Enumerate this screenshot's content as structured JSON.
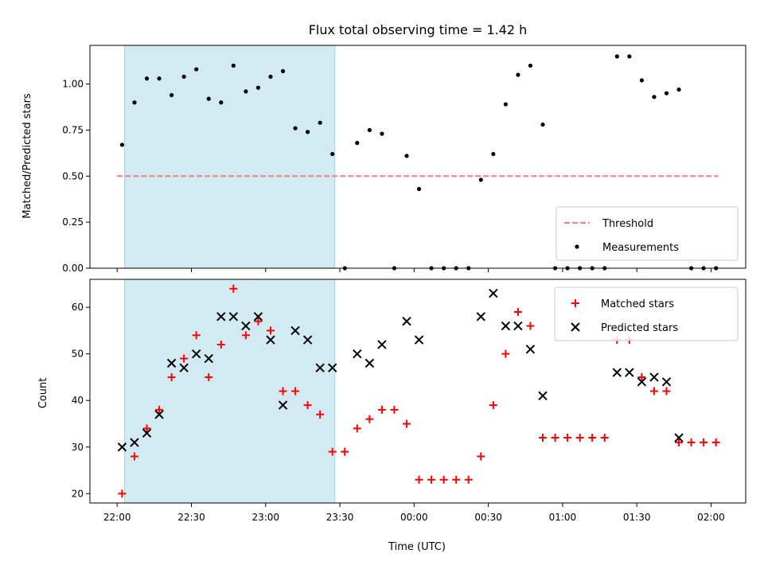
{
  "chart_data": [
    {
      "type": "scatter",
      "title": "Flux total observing time = 1.42 h",
      "xlabel": "",
      "ylabel": "Matched/Predicted stars",
      "ylim": [
        0,
        1.21
      ],
      "xlim": [
        "21:49",
        "02:14"
      ],
      "yticks": [
        "0.00",
        "0.25",
        "0.50",
        "0.75",
        "1.00"
      ],
      "shaded_span": {
        "start": "22:03",
        "end": "23:28",
        "color": "#add8e6"
      },
      "threshold": {
        "name": "Threshold",
        "value": 0.5,
        "start": "22:00",
        "end": "02:03",
        "color": "#f08080"
      },
      "legend": {
        "position": "lower right"
      },
      "series": [
        {
          "name": "Measurements",
          "color": "#000000",
          "x": [
            "22:02",
            "22:07",
            "22:12",
            "22:17",
            "22:22",
            "22:27",
            "22:32",
            "22:37",
            "22:42",
            "22:47",
            "22:52",
            "22:57",
            "23:02",
            "23:07",
            "23:12",
            "23:17",
            "23:22",
            "23:27",
            "23:32",
            "23:37",
            "23:42",
            "23:47",
            "23:52",
            "23:57",
            "00:02",
            "00:07",
            "00:12",
            "00:17",
            "00:22",
            "00:27",
            "00:32",
            "00:37",
            "00:42",
            "00:47",
            "00:52",
            "00:57",
            "01:02",
            "01:07",
            "01:12",
            "01:17",
            "01:22",
            "01:27",
            "01:32",
            "01:37",
            "01:42",
            "01:47",
            "01:52",
            "01:57",
            "02:02"
          ],
          "y": [
            0.67,
            0.9,
            1.03,
            1.03,
            0.94,
            1.04,
            1.08,
            0.92,
            0.9,
            1.1,
            0.96,
            0.98,
            1.04,
            1.07,
            0.76,
            0.74,
            0.79,
            0.62,
            0.0,
            0.68,
            0.75,
            0.73,
            0.0,
            0.61,
            0.43,
            0.0,
            0.0,
            0.0,
            0.0,
            0.48,
            0.62,
            0.89,
            1.05,
            1.1,
            0.78,
            0.0,
            0.0,
            0.0,
            0.0,
            0.0,
            1.15,
            1.15,
            1.02,
            0.93,
            0.95,
            0.97,
            0.0,
            0.0,
            0.0
          ]
        }
      ]
    },
    {
      "type": "scatter",
      "title": "",
      "xlabel": "Time (UTC)",
      "ylabel": "Count",
      "ylim": [
        18,
        66
      ],
      "xlim": [
        "21:49",
        "02:14"
      ],
      "yticks": [
        "20",
        "30",
        "40",
        "50",
        "60"
      ],
      "xticks": [
        "22:00",
        "22:30",
        "23:00",
        "23:30",
        "00:00",
        "00:30",
        "01:00",
        "01:30",
        "02:00"
      ],
      "shaded_span": {
        "start": "22:03",
        "end": "23:28",
        "color": "#add8e6"
      },
      "legend": {
        "position": "upper right"
      },
      "series": [
        {
          "name": "Matched stars",
          "marker": "+",
          "color": "#ff0000",
          "x": [
            "22:02",
            "22:07",
            "22:12",
            "22:17",
            "22:22",
            "22:27",
            "22:32",
            "22:37",
            "22:42",
            "22:47",
            "22:52",
            "22:57",
            "23:02",
            "23:07",
            "23:12",
            "23:17",
            "23:22",
            "23:27",
            "23:32",
            "23:37",
            "23:42",
            "23:47",
            "23:52",
            "23:57",
            "00:02",
            "00:07",
            "00:12",
            "00:17",
            "00:22",
            "00:27",
            "00:32",
            "00:37",
            "00:42",
            "00:47",
            "00:52",
            "00:57",
            "01:02",
            "01:07",
            "01:12",
            "01:17",
            "01:22",
            "01:27",
            "01:32",
            "01:37",
            "01:42",
            "01:47",
            "01:52",
            "01:57",
            "02:02"
          ],
          "y": [
            20,
            28,
            34,
            38,
            45,
            49,
            54,
            45,
            52,
            64,
            54,
            57,
            55,
            42,
            42,
            39,
            37,
            29,
            29,
            34,
            36,
            38,
            38,
            35,
            23,
            23,
            23,
            23,
            23,
            28,
            39,
            50,
            59,
            56,
            32,
            32,
            32,
            32,
            32,
            32,
            53,
            53,
            45,
            42,
            42,
            31,
            31,
            31,
            31
          ]
        },
        {
          "name": "Predicted stars",
          "marker": "x",
          "color": "#000000",
          "x": [
            "22:02",
            "22:07",
            "22:12",
            "22:17",
            "22:22",
            "22:27",
            "22:32",
            "22:37",
            "22:42",
            "22:47",
            "22:52",
            "22:57",
            "23:02",
            "23:07",
            "23:12",
            "23:17",
            "23:22",
            "23:27",
            "23:37",
            "23:42",
            "23:47",
            "23:57",
            "00:02",
            "00:27",
            "00:32",
            "00:37",
            "00:42",
            "00:47",
            "00:52",
            "01:22",
            "01:27",
            "01:32",
            "01:37",
            "01:42",
            "01:47"
          ],
          "y": [
            30,
            31,
            33,
            37,
            48,
            47,
            50,
            49,
            58,
            58,
            56,
            58,
            53,
            39,
            55,
            53,
            47,
            47,
            50,
            48,
            52,
            57,
            53,
            58,
            63,
            56,
            56,
            51,
            41,
            46,
            46,
            44,
            45,
            44,
            32
          ]
        }
      ]
    }
  ]
}
